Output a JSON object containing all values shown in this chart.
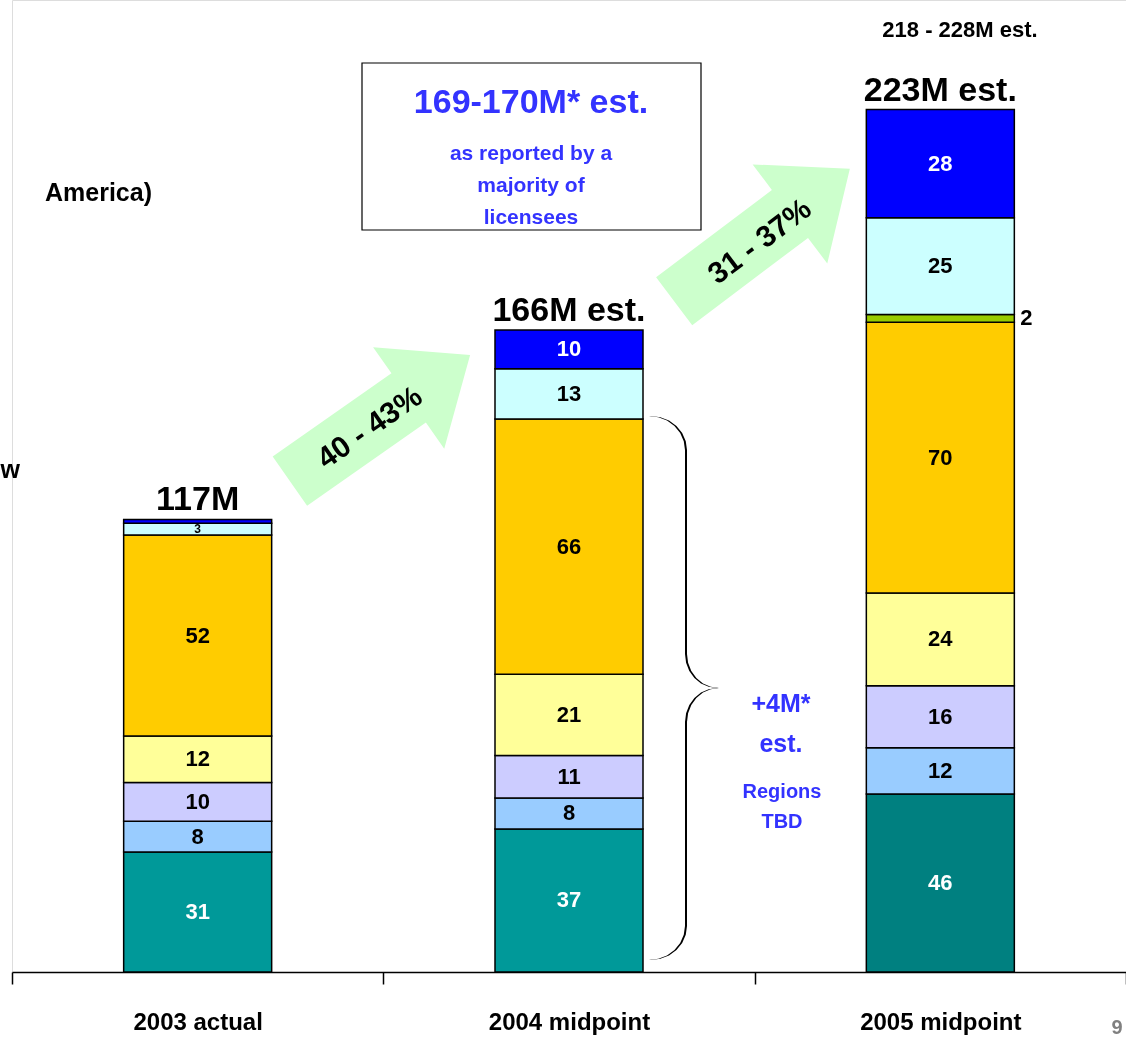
{
  "chart_data": {
    "type": "bar",
    "stacked": true,
    "categories": [
      "2003 actual",
      "2004 midpoint",
      "2005 midpoint"
    ],
    "series": [
      {
        "colors": [
          "#009999",
          "#009999",
          "#008080"
        ],
        "values": [
          31,
          37,
          46
        ],
        "value_labels": [
          "31",
          "37",
          "46"
        ]
      },
      {
        "color": "#99ccff",
        "values": [
          8,
          8,
          12
        ],
        "value_labels": [
          "8",
          "8",
          "12"
        ]
      },
      {
        "color": "#ccccff",
        "values": [
          10,
          11,
          16
        ],
        "value_labels": [
          "10",
          "11",
          "16"
        ]
      },
      {
        "color": "#ffff99",
        "values": [
          12,
          21,
          24
        ],
        "value_labels": [
          "12",
          "21",
          "24"
        ]
      },
      {
        "color": "#ffcc00",
        "values": [
          52,
          66,
          70
        ],
        "value_labels": [
          "52",
          "66",
          "70"
        ]
      },
      {
        "color": "#99cc00",
        "values": [
          null,
          null,
          2
        ],
        "value_labels": [
          null,
          null,
          "2"
        ]
      },
      {
        "color": "#ccffff",
        "values": [
          3,
          13,
          25
        ],
        "value_labels": [
          "3",
          "13",
          "25"
        ]
      },
      {
        "color": "#0000ff",
        "values": [
          1,
          10,
          28
        ],
        "value_labels": [
          null,
          "10",
          "28"
        ]
      }
    ],
    "totals": [
      "117M",
      "166M est.",
      "223M est."
    ],
    "annotations": [
      "218 - 228M est.",
      "169-170M* est.",
      "as reported by a majority of licensees",
      "40 - 43%",
      "31 - 37%",
      "+4M* est.",
      "Regions TBD",
      "America)",
      "w",
      "9"
    ],
    "grid": false
  }
}
